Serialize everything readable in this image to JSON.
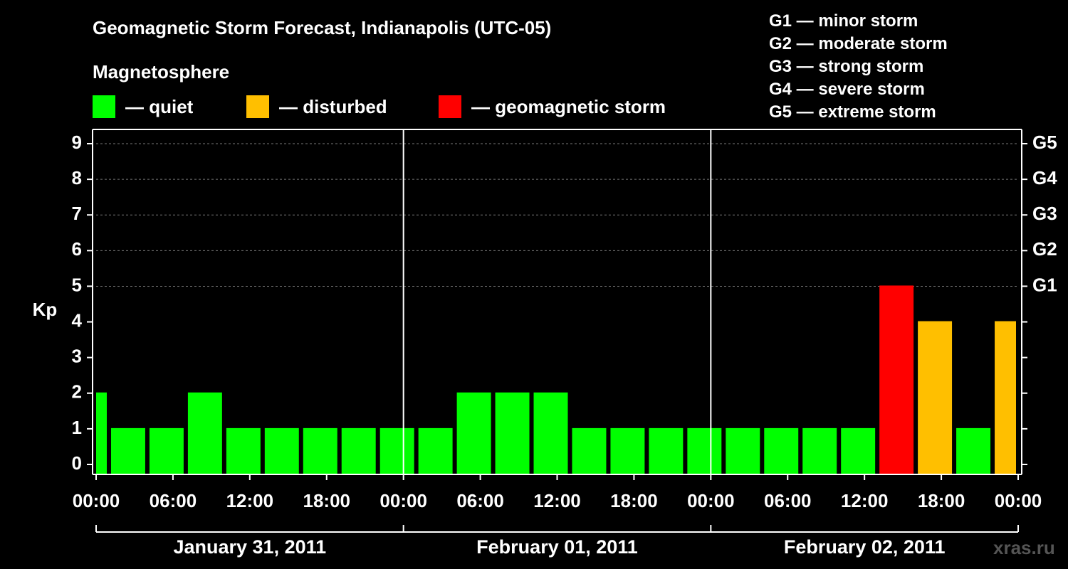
{
  "chart_data": {
    "type": "bar",
    "title": "Geomagnetic Storm Forecast, Indianapolis (UTC-05)",
    "ylabel": "Kp",
    "ylim": [
      0,
      9
    ],
    "yticks": [
      "0",
      "1",
      "2",
      "3",
      "4",
      "5",
      "6",
      "7",
      "8",
      "9"
    ],
    "right_axis_labels": [
      {
        "kp": 5,
        "label": "G1"
      },
      {
        "kp": 6,
        "label": "G2"
      },
      {
        "kp": 7,
        "label": "G3"
      },
      {
        "kp": 8,
        "label": "G4"
      },
      {
        "kp": 9,
        "label": "G5"
      }
    ],
    "x_tick_labels": [
      "00:00",
      "06:00",
      "12:00",
      "18:00",
      "00:00",
      "06:00",
      "12:00",
      "18:00",
      "00:00",
      "06:00",
      "12:00",
      "18:00",
      "00:00"
    ],
    "days": [
      "January 31, 2011",
      "February 01, 2011",
      "February 02, 2011"
    ],
    "status_colors": {
      "quiet": "#00ff00",
      "disturbed": "#ffbf00",
      "storm": "#ff0000"
    },
    "bars": [
      {
        "start_hour": 0,
        "end_hour": 1,
        "kp": 2,
        "status": "quiet"
      },
      {
        "start_hour": 1,
        "end_hour": 4,
        "kp": 1,
        "status": "quiet"
      },
      {
        "start_hour": 4,
        "end_hour": 7,
        "kp": 1,
        "status": "quiet"
      },
      {
        "start_hour": 7,
        "end_hour": 10,
        "kp": 2,
        "status": "quiet"
      },
      {
        "start_hour": 10,
        "end_hour": 13,
        "kp": 1,
        "status": "quiet"
      },
      {
        "start_hour": 13,
        "end_hour": 16,
        "kp": 1,
        "status": "quiet"
      },
      {
        "start_hour": 16,
        "end_hour": 19,
        "kp": 1,
        "status": "quiet"
      },
      {
        "start_hour": 19,
        "end_hour": 22,
        "kp": 1,
        "status": "quiet"
      },
      {
        "start_hour": 22,
        "end_hour": 25,
        "kp": 1,
        "status": "quiet"
      },
      {
        "start_hour": 25,
        "end_hour": 28,
        "kp": 1,
        "status": "quiet"
      },
      {
        "start_hour": 28,
        "end_hour": 31,
        "kp": 2,
        "status": "quiet"
      },
      {
        "start_hour": 31,
        "end_hour": 34,
        "kp": 2,
        "status": "quiet"
      },
      {
        "start_hour": 34,
        "end_hour": 37,
        "kp": 2,
        "status": "quiet"
      },
      {
        "start_hour": 37,
        "end_hour": 40,
        "kp": 1,
        "status": "quiet"
      },
      {
        "start_hour": 40,
        "end_hour": 43,
        "kp": 1,
        "status": "quiet"
      },
      {
        "start_hour": 43,
        "end_hour": 46,
        "kp": 1,
        "status": "quiet"
      },
      {
        "start_hour": 46,
        "end_hour": 49,
        "kp": 1,
        "status": "quiet"
      },
      {
        "start_hour": 49,
        "end_hour": 52,
        "kp": 1,
        "status": "quiet"
      },
      {
        "start_hour": 52,
        "end_hour": 55,
        "kp": 1,
        "status": "quiet"
      },
      {
        "start_hour": 55,
        "end_hour": 58,
        "kp": 1,
        "status": "quiet"
      },
      {
        "start_hour": 58,
        "end_hour": 61,
        "kp": 1,
        "status": "quiet"
      },
      {
        "start_hour": 61,
        "end_hour": 64,
        "kp": 5,
        "status": "storm"
      },
      {
        "start_hour": 64,
        "end_hour": 67,
        "kp": 4,
        "status": "disturbed"
      },
      {
        "start_hour": 67,
        "end_hour": 70,
        "kp": 1,
        "status": "quiet"
      },
      {
        "start_hour": 70,
        "end_hour": 72,
        "kp": 4,
        "status": "disturbed"
      }
    ],
    "grid": true
  },
  "legend": {
    "heading": "Magnetosphere",
    "items": [
      {
        "label": "— quiet",
        "color": "#00ff00"
      },
      {
        "label": "— disturbed",
        "color": "#ffbf00"
      },
      {
        "label": "— geomagnetic storm",
        "color": "#ff0000"
      }
    ]
  },
  "storm_scale": [
    "G1 — minor storm",
    "G2 — moderate storm",
    "G3 — strong storm",
    "G4 — severe storm",
    "G5 — extreme storm"
  ],
  "watermark": "xras.ru"
}
